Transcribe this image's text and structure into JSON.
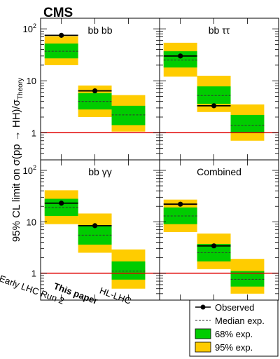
{
  "experiment_label": "CMS",
  "ylabel": "95% CL limit on σ(pp → HH)/σ",
  "ylabel_subscript": "Theory",
  "y_ticks": [
    {
      "value": 1,
      "base": "1",
      "exp": ""
    },
    {
      "value": 10,
      "base": "10",
      "exp": ""
    },
    {
      "value": 100,
      "base": "10",
      "exp": "2"
    }
  ],
  "x_categories": [
    "Early LHC Run 2",
    "This paper",
    "HL-LHC"
  ],
  "legend": {
    "observed": "Observed",
    "median": "Median exp.",
    "band68": "68% exp.",
    "band95": "95% exp."
  },
  "colors": {
    "band68": "#00cc00",
    "band95": "#ffcc00",
    "reference_line": "#e00000",
    "median": "#333333"
  },
  "chart_data": {
    "type": "bar",
    "y_scale": "log",
    "ylim": [
      0.3,
      160
    ],
    "reference_line": 1,
    "categories": [
      "Early LHC Run 2",
      "This paper",
      "HL-LHC"
    ],
    "panels": [
      {
        "title": "bb bb",
        "entries": [
          {
            "category": "Early LHC Run 2",
            "observed": 75,
            "median": 37,
            "band68": [
              27,
              52
            ],
            "band95": [
              20,
              72
            ]
          },
          {
            "category": "This paper",
            "observed": 6.4,
            "median": 4.0,
            "band68": [
              2.8,
              5.8
            ],
            "band95": [
              2.0,
              8.1
            ]
          },
          {
            "category": "HL-LHC",
            "observed": null,
            "median": 2.2,
            "band68": [
              1.4,
              3.3
            ],
            "band95": [
              1.05,
              5.3
            ]
          }
        ]
      },
      {
        "title": "bb ττ",
        "entries": [
          {
            "category": "Early LHC Run 2",
            "observed": 30,
            "median": 25,
            "band68": [
              18,
              37
            ],
            "band95": [
              12,
              54
            ]
          },
          {
            "category": "This paper",
            "observed": 3.3,
            "median": 5.2,
            "band68": [
              3.6,
              7.8
            ],
            "band95": [
              2.5,
              12.5
            ]
          },
          {
            "category": "HL-LHC",
            "observed": null,
            "median": 1.4,
            "band68": [
              1.0,
              2.2
            ],
            "band95": [
              0.7,
              3.5
            ]
          }
        ]
      },
      {
        "title": "bb γγ",
        "entries": [
          {
            "category": "Early LHC Run 2",
            "observed": 23,
            "median": 19,
            "band68": [
              13,
              28
            ],
            "band95": [
              9,
              41
            ]
          },
          {
            "category": "This paper",
            "observed": 8.4,
            "median": 5.5,
            "band68": [
              3.6,
              8.6
            ],
            "band95": [
              2.5,
              14.5
            ]
          },
          {
            "category": "HL-LHC",
            "observed": null,
            "median": 1.1,
            "band68": [
              0.75,
              1.7
            ],
            "band95": [
              0.5,
              2.9
            ]
          }
        ]
      },
      {
        "title": "Combined",
        "entries": [
          {
            "category": "Early LHC Run 2",
            "observed": 22,
            "median": 13,
            "band68": [
              9,
              19
            ],
            "band95": [
              6.3,
              27
            ]
          },
          {
            "category": "This paper",
            "observed": 3.4,
            "median": 2.5,
            "band68": [
              1.7,
              3.7
            ],
            "band95": [
              1.2,
              5.9
            ]
          },
          {
            "category": "HL-LHC",
            "observed": null,
            "median": 0.76,
            "band68": [
              0.55,
              1.1
            ],
            "band95": [
              0.4,
              1.9
            ]
          }
        ]
      }
    ]
  }
}
